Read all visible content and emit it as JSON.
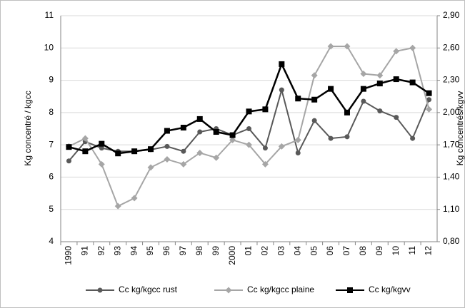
{
  "chart_data": {
    "type": "line",
    "categories": [
      "1990",
      "91",
      "92",
      "93",
      "94",
      "95",
      "96",
      "97",
      "98",
      "99",
      "2000",
      "01",
      "02",
      "03",
      "04",
      "05",
      "06",
      "07",
      "08",
      "09",
      "10",
      "11",
      "12"
    ],
    "y_label": "Kg concentré / kgcc",
    "y2_label": "Kg concentrés/kgvv",
    "ylim": [
      4,
      11
    ],
    "yticks": [
      4,
      5,
      6,
      7,
      8,
      9,
      10,
      11
    ],
    "y2lim": [
      0.8,
      2.9
    ],
    "y2ticks": [
      {
        "value": 0.8,
        "label": "0,80"
      },
      {
        "value": 1.1,
        "label": "1,10"
      },
      {
        "value": 1.4,
        "label": "1,40"
      },
      {
        "value": 1.7,
        "label": "1,70"
      },
      {
        "value": 2.0,
        "label": "2,00"
      },
      {
        "value": 2.3,
        "label": "2,30"
      },
      {
        "value": 2.6,
        "label": "2,60"
      },
      {
        "value": 2.9,
        "label": "2,90"
      }
    ],
    "grid": true,
    "legend": "bottom",
    "series": [
      {
        "name": "Cc kg/kgcc rust",
        "color": "#595959",
        "marker": "circle",
        "values": [
          6.5,
          7.1,
          6.9,
          6.8,
          6.8,
          6.85,
          6.95,
          6.8,
          7.4,
          7.5,
          7.3,
          7.5,
          6.9,
          8.7,
          6.75,
          7.75,
          7.2,
          7.25,
          8.35,
          8.05,
          7.85,
          7.2,
          8.4
        ]
      },
      {
        "name": "Cc kg/kgcc plaine",
        "color": "#a6a6a6",
        "marker": "diamond",
        "values": [
          6.95,
          7.2,
          6.4,
          5.1,
          5.35,
          6.3,
          6.55,
          6.4,
          6.75,
          6.6,
          7.15,
          7.0,
          6.4,
          6.95,
          7.15,
          9.15,
          10.05,
          10.05,
          9.2,
          9.15,
          9.9,
          10.0,
          8.1
        ]
      },
      {
        "name": "Cc kg/kgvv",
        "color": "#000000",
        "marker": "square",
        "axis": "y2",
        "values": [
          1.68,
          1.64,
          1.71,
          1.62,
          1.64,
          1.66,
          1.83,
          1.86,
          1.94,
          1.82,
          1.79,
          2.01,
          2.03,
          2.45,
          2.13,
          2.12,
          2.22,
          2.0,
          2.22,
          2.27,
          2.31,
          2.28,
          2.18
        ]
      }
    ]
  }
}
